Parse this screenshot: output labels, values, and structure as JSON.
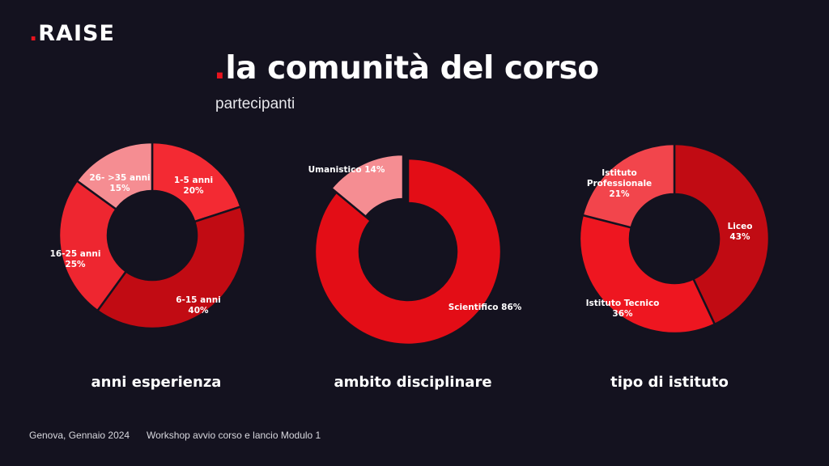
{
  "brand": {
    "logo_dot": ".",
    "logo_text": "RAISE"
  },
  "header": {
    "title_dot": ".",
    "title": "la comunità del corso",
    "subtitle": "partecipanti"
  },
  "footer": {
    "location_date": "Genova, Gennaio 2024",
    "event": "Workshop avvio corso e lancio Modulo 1"
  },
  "colors": {
    "accent": "#e8141e",
    "background": "#14121f"
  },
  "chart_data": [
    {
      "type": "pie",
      "variant": "donut",
      "caption": "anni esperienza",
      "slices": [
        {
          "label": "1-5 anni",
          "value": 20,
          "value_label": "20%",
          "color": "#f32a33"
        },
        {
          "label": "6-15 anni",
          "value": 40,
          "value_label": "40%",
          "color": "#c10b13"
        },
        {
          "label": "16-25 anni",
          "value": 25,
          "value_label": "25%",
          "color": "#ee2630"
        },
        {
          "label": "26- >35 anni",
          "value": 15,
          "value_label": "15%",
          "color": "#f58d92"
        }
      ]
    },
    {
      "type": "pie",
      "variant": "donut",
      "caption": "ambito disciplinare",
      "slices": [
        {
          "label": "Scientifico",
          "value": 86,
          "value_label": "86%",
          "color": "#e30d16"
        },
        {
          "label": "Umanistico",
          "value": 14,
          "value_label": "14%",
          "color": "#f58d92"
        }
      ]
    },
    {
      "type": "pie",
      "variant": "donut",
      "caption": "tipo di istituto",
      "slices": [
        {
          "label": "Liceo",
          "value": 43,
          "value_label": "43%",
          "color": "#c10b13"
        },
        {
          "label": "Istituto Tecnico",
          "value": 36,
          "value_label": "36%",
          "color": "#ee1620"
        },
        {
          "label": "Istituto Professionale",
          "value": 21,
          "value_label": "21%",
          "color": "#f2454c"
        }
      ]
    }
  ]
}
